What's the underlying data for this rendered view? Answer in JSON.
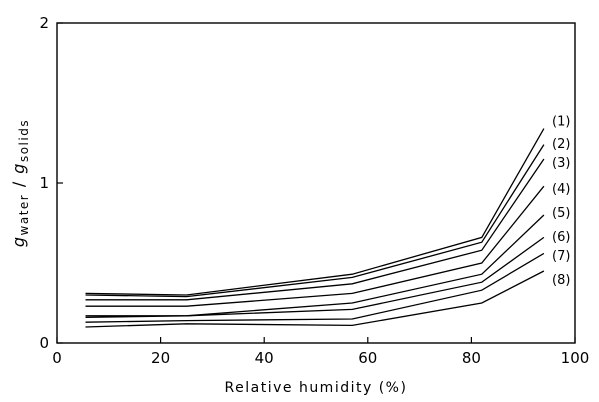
{
  "chart_data": {
    "type": "line",
    "title": "",
    "xlabel": "Relative humidity (%)",
    "ylabel_main": "g",
    "ylabel_sub1": "water",
    "ylabel_sep": " / ",
    "ylabel_sub2": "solids",
    "xlim": [
      0,
      100
    ],
    "ylim": [
      0,
      2
    ],
    "xticks": [
      0,
      20,
      40,
      60,
      80,
      100
    ],
    "yticks": [
      0,
      1,
      2
    ],
    "grid": false,
    "legend": "right-end labels",
    "x": [
      5.5,
      25,
      57,
      82,
      94
    ],
    "series": [
      {
        "name": "(1)",
        "values": [
          0.31,
          0.3,
          0.43,
          0.66,
          1.34
        ]
      },
      {
        "name": "(2)",
        "values": [
          0.3,
          0.29,
          0.41,
          0.63,
          1.24
        ]
      },
      {
        "name": "(3)",
        "values": [
          0.27,
          0.27,
          0.37,
          0.58,
          1.15
        ]
      },
      {
        "name": "(4)",
        "values": [
          0.23,
          0.23,
          0.31,
          0.5,
          0.98
        ]
      },
      {
        "name": "(5)",
        "values": [
          0.17,
          0.17,
          0.25,
          0.43,
          0.8
        ]
      },
      {
        "name": "(6)",
        "values": [
          0.16,
          0.17,
          0.21,
          0.38,
          0.66
        ]
      },
      {
        "name": "(7)",
        "values": [
          0.13,
          0.14,
          0.15,
          0.33,
          0.56
        ]
      },
      {
        "name": "(8)",
        "values": [
          0.1,
          0.12,
          0.11,
          0.25,
          0.45
        ]
      }
    ],
    "series_label_y": [
      1.39,
      1.25,
      1.13,
      0.97,
      0.82,
      0.67,
      0.55,
      0.4
    ]
  }
}
